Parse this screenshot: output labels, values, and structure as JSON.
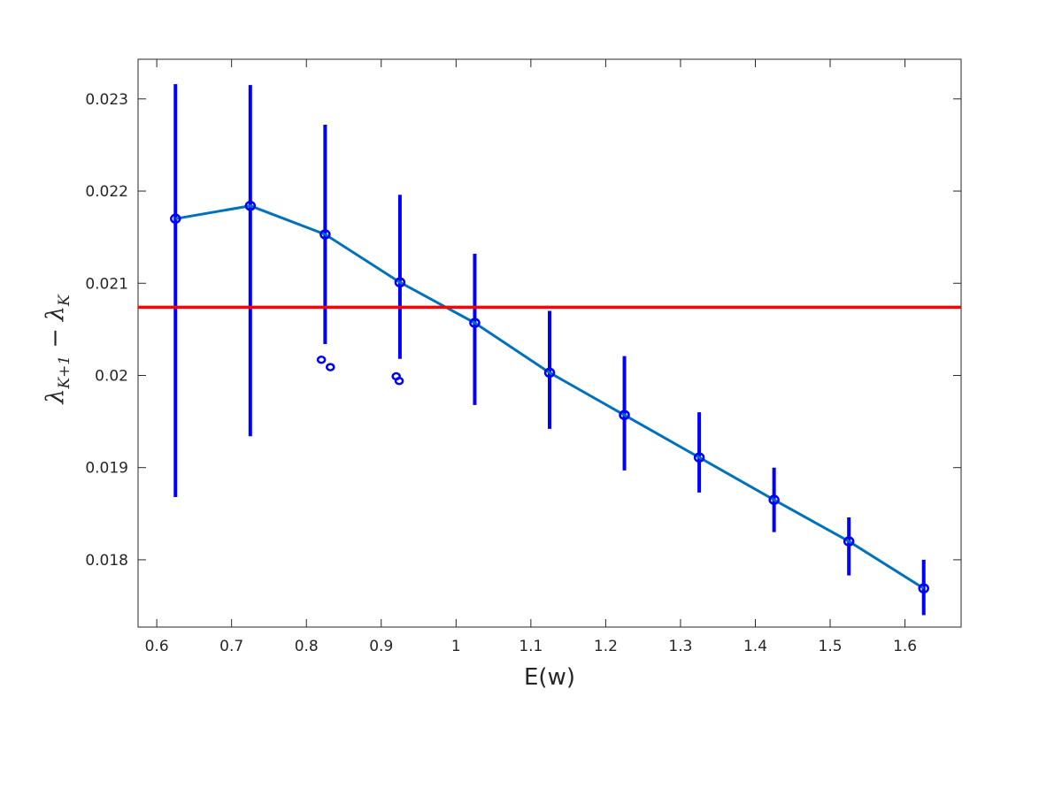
{
  "chart_data": {
    "type": "line",
    "title": "",
    "xlabel": "E(w)",
    "ylabel": {
      "lambda": "λ",
      "sub1": "K+1",
      "minus": "−",
      "sub2": "K"
    },
    "xlim": [
      0.575,
      1.675
    ],
    "ylim": [
      0.01727,
      0.02343
    ],
    "xticks": [
      0.6,
      0.7,
      0.8,
      0.9,
      1.0,
      1.1,
      1.2,
      1.3,
      1.4,
      1.5,
      1.6
    ],
    "xtick_labels": [
      "0.6",
      "0.7",
      "0.8",
      "0.9",
      "1",
      "1.1",
      "1.2",
      "1.3",
      "1.4",
      "1.5",
      "1.6"
    ],
    "yticks": [
      0.018,
      0.019,
      0.02,
      0.021,
      0.022,
      0.023
    ],
    "ytick_labels": [
      "0.018",
      "0.019",
      "0.02",
      "0.021",
      "0.022",
      "0.023"
    ],
    "grid": false,
    "series": [
      {
        "style": "line with circle markers and vertical error bars",
        "line_color": "#0072BD",
        "marker_color": "#0000FF",
        "x": [
          0.625,
          0.725,
          0.825,
          0.925,
          1.025,
          1.125,
          1.225,
          1.325,
          1.425,
          1.525,
          1.625
        ],
        "y": [
          0.0217,
          0.02184,
          0.02153,
          0.02101,
          0.02057,
          0.02003,
          0.01957,
          0.01911,
          0.01865,
          0.0182,
          0.01769
        ],
        "err_low": [
          0.01868,
          0.01934,
          0.02034,
          0.02018,
          0.01968,
          0.01942,
          0.01897,
          0.01873,
          0.0183,
          0.01783,
          0.0174
        ],
        "err_high": [
          0.02316,
          0.02315,
          0.02272,
          0.02196,
          0.02132,
          0.0207,
          0.02021,
          0.0196,
          0.019,
          0.01846,
          0.018
        ]
      }
    ],
    "outliers": {
      "color": "#0000FF",
      "points": [
        {
          "x": 0.82,
          "y": 0.02017
        },
        {
          "x": 0.832,
          "y": 0.02009
        },
        {
          "x": 0.92,
          "y": 0.01999
        },
        {
          "x": 0.924,
          "y": 0.01994
        }
      ]
    },
    "reference_line": {
      "y": 0.02074,
      "color": "#FF0000"
    }
  }
}
